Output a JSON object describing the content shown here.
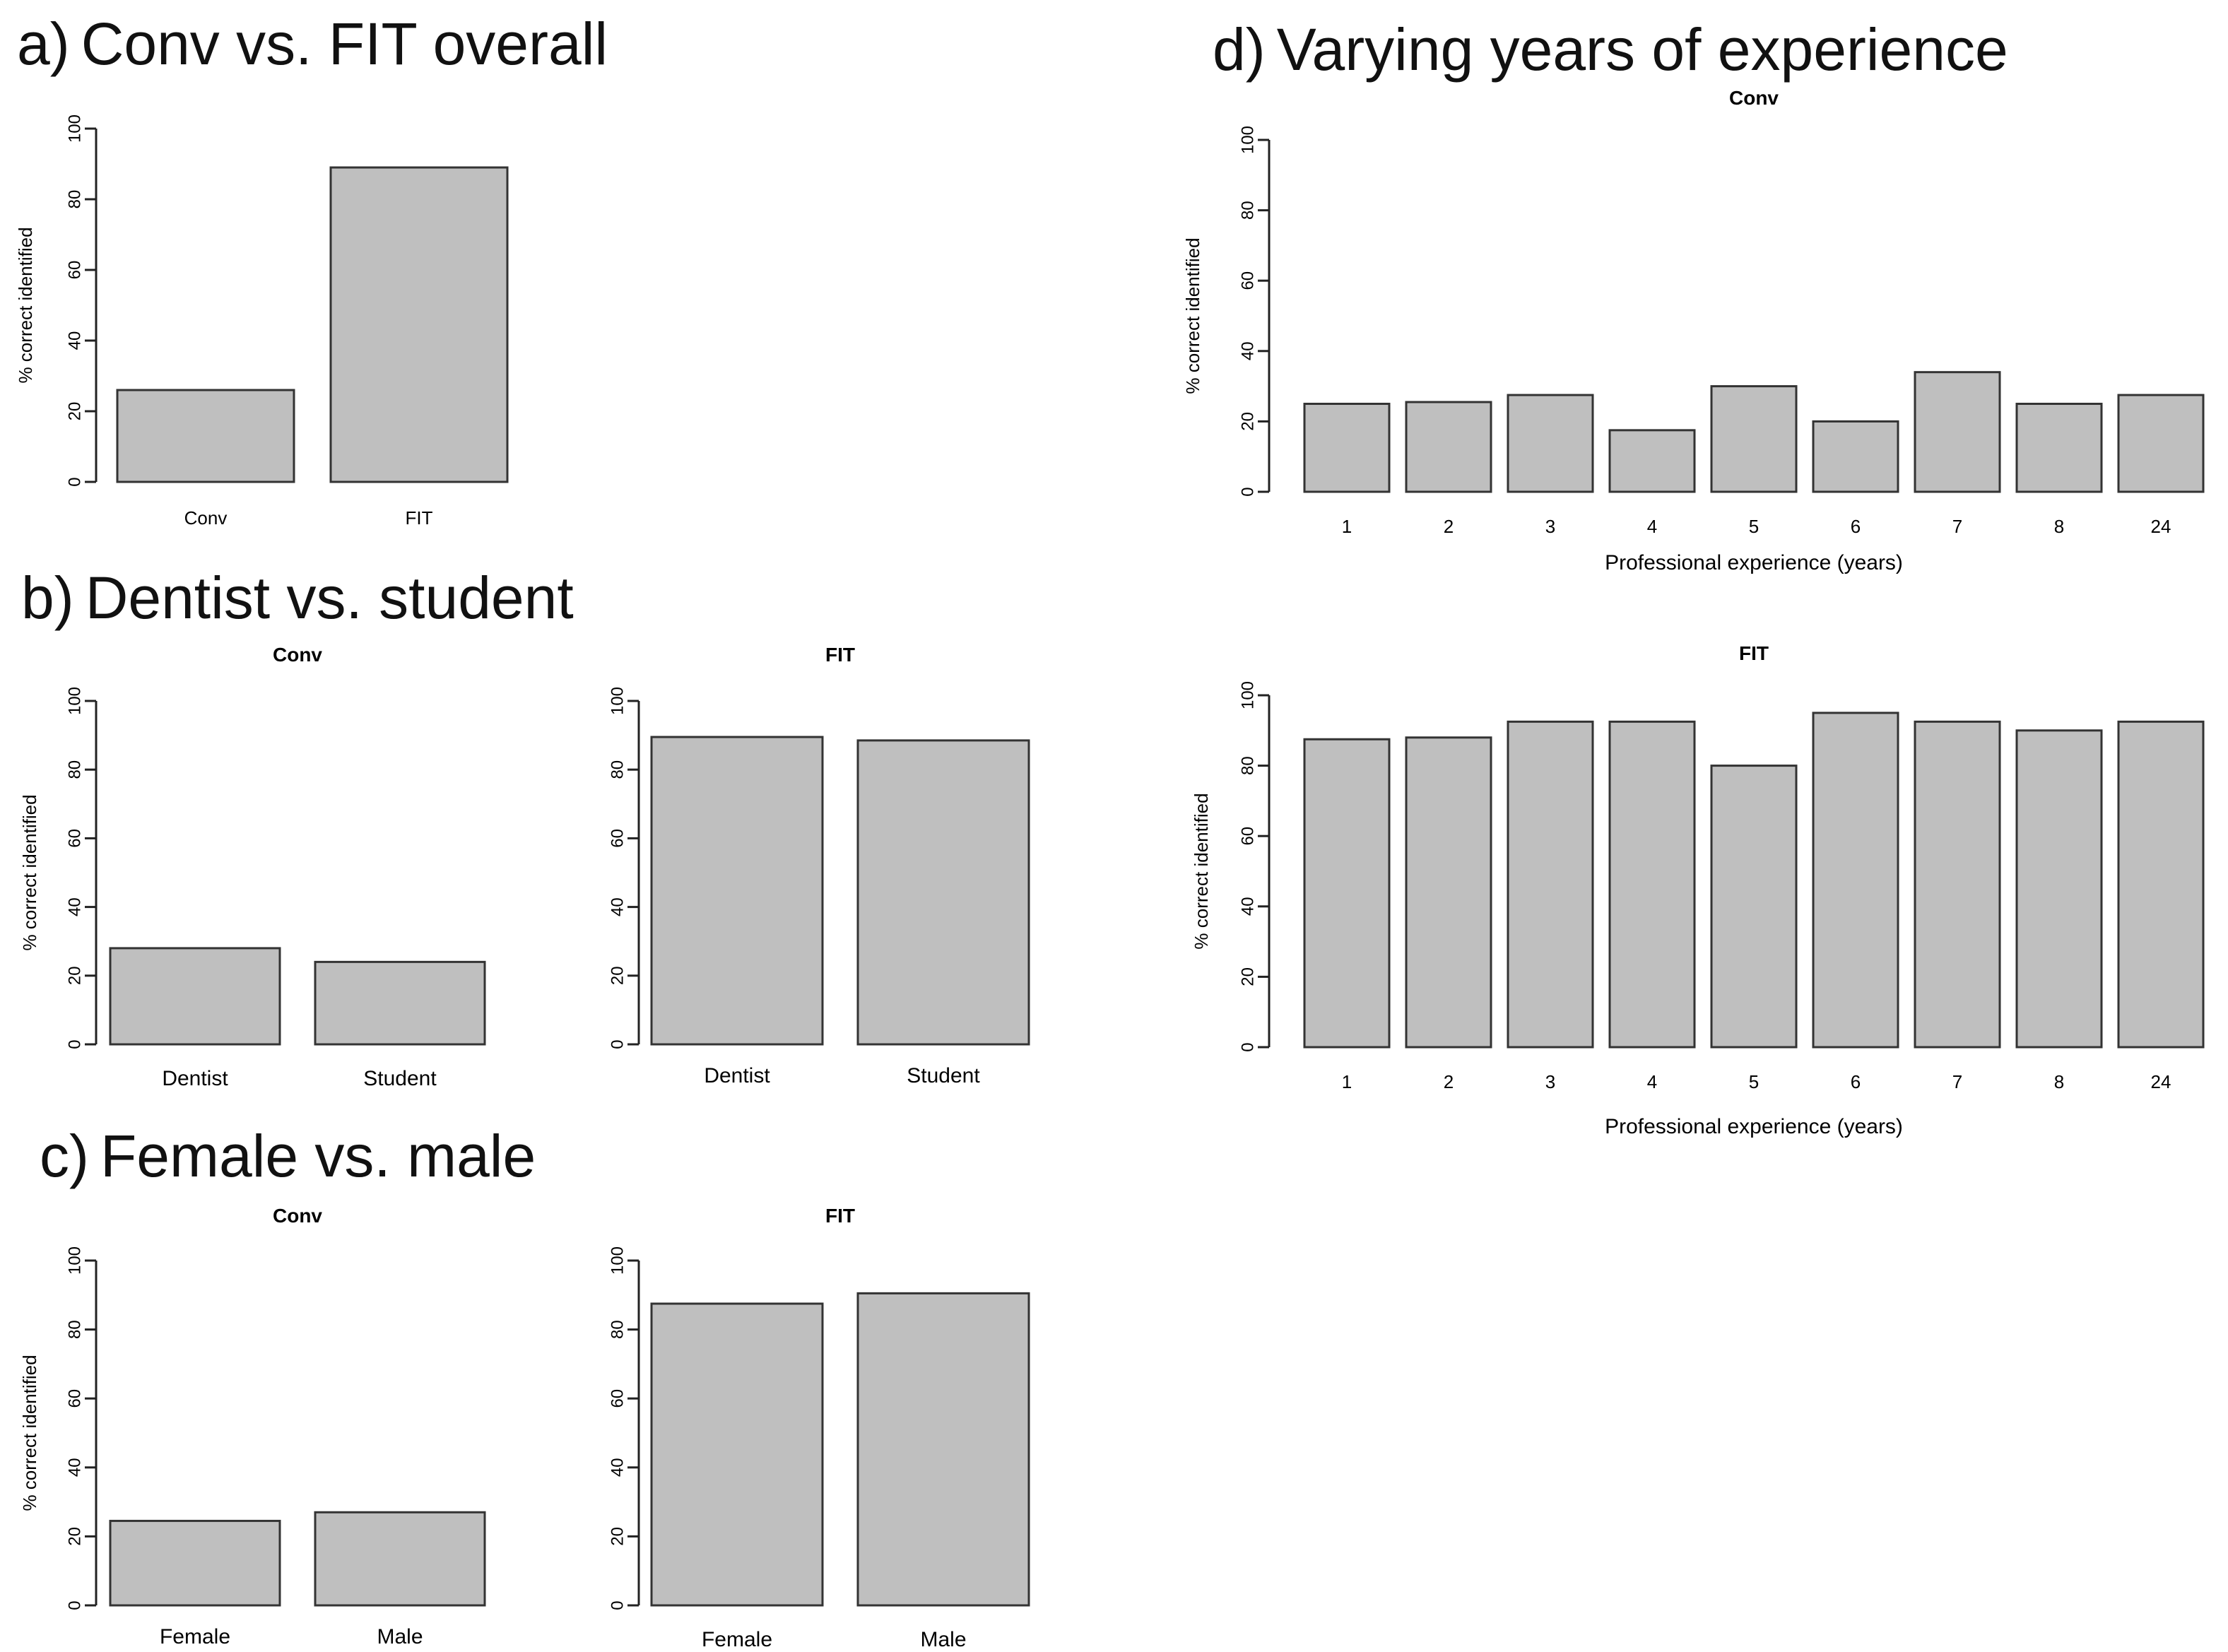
{
  "panels": {
    "a": {
      "letter": "a)",
      "title": "Conv vs. FIT overall"
    },
    "b": {
      "letter": "b)",
      "title": "Dentist vs. student"
    },
    "c": {
      "letter": "c)",
      "title": "Female vs. male"
    },
    "d": {
      "letter": "d)",
      "title": "Varying years of experience"
    }
  },
  "colors": {
    "bar_fill": "#bfbfbf",
    "bar_stroke": "#333333",
    "axis": "#222222"
  },
  "chart_data": [
    {
      "id": "a",
      "type": "bar",
      "title": "",
      "categories": [
        "Conv",
        "FIT"
      ],
      "values": [
        26,
        89
      ],
      "xlabel": "",
      "ylabel": "% correct identified",
      "ylim": [
        0,
        100
      ],
      "yticks": [
        0,
        20,
        40,
        60,
        80,
        100
      ],
      "grid": false
    },
    {
      "id": "b-conv",
      "type": "bar",
      "title": "Conv",
      "categories": [
        "Dentist",
        "Student"
      ],
      "values": [
        28,
        24
      ],
      "xlabel": "",
      "ylabel": "% correct identified",
      "ylim": [
        0,
        100
      ],
      "yticks": [
        0,
        20,
        40,
        60,
        80,
        100
      ],
      "grid": false
    },
    {
      "id": "b-fit",
      "type": "bar",
      "title": "FIT",
      "categories": [
        "Dentist",
        "Student"
      ],
      "values": [
        89.5,
        88.5
      ],
      "xlabel": "",
      "ylabel": "",
      "ylim": [
        0,
        100
      ],
      "yticks": [
        0,
        20,
        40,
        60,
        80,
        100
      ],
      "grid": false
    },
    {
      "id": "c-conv",
      "type": "bar",
      "title": "Conv",
      "categories": [
        "Female",
        "Male"
      ],
      "values": [
        24.5,
        27
      ],
      "xlabel": "",
      "ylabel": "% correct identified",
      "ylim": [
        0,
        100
      ],
      "yticks": [
        0,
        20,
        40,
        60,
        80,
        100
      ],
      "grid": false
    },
    {
      "id": "c-fit",
      "type": "bar",
      "title": "FIT",
      "categories": [
        "Female",
        "Male"
      ],
      "values": [
        87.5,
        90.5
      ],
      "xlabel": "",
      "ylabel": "",
      "ylim": [
        0,
        100
      ],
      "yticks": [
        0,
        20,
        40,
        60,
        80,
        100
      ],
      "grid": false
    },
    {
      "id": "d-conv",
      "type": "bar",
      "title": "Conv",
      "categories": [
        "1",
        "2",
        "3",
        "4",
        "5",
        "6",
        "7",
        "8",
        "24"
      ],
      "values": [
        25,
        25.5,
        27.5,
        17.5,
        30,
        20,
        34,
        25,
        27.5
      ],
      "xlabel": "Professional experience (years)",
      "ylabel": "% correct identified",
      "ylim": [
        0,
        100
      ],
      "yticks": [
        0,
        20,
        40,
        60,
        80,
        100
      ],
      "grid": false
    },
    {
      "id": "d-fit",
      "type": "bar",
      "title": "FIT",
      "categories": [
        "1",
        "2",
        "3",
        "4",
        "5",
        "6",
        "7",
        "8",
        "24"
      ],
      "values": [
        87.5,
        88,
        92.5,
        92.5,
        80,
        95,
        92.5,
        90,
        92.5
      ],
      "xlabel": "Professional experience (years)",
      "ylabel": "% correct identified",
      "ylim": [
        0,
        100
      ],
      "yticks": [
        0,
        20,
        40,
        60,
        80,
        100
      ],
      "grid": false
    }
  ]
}
